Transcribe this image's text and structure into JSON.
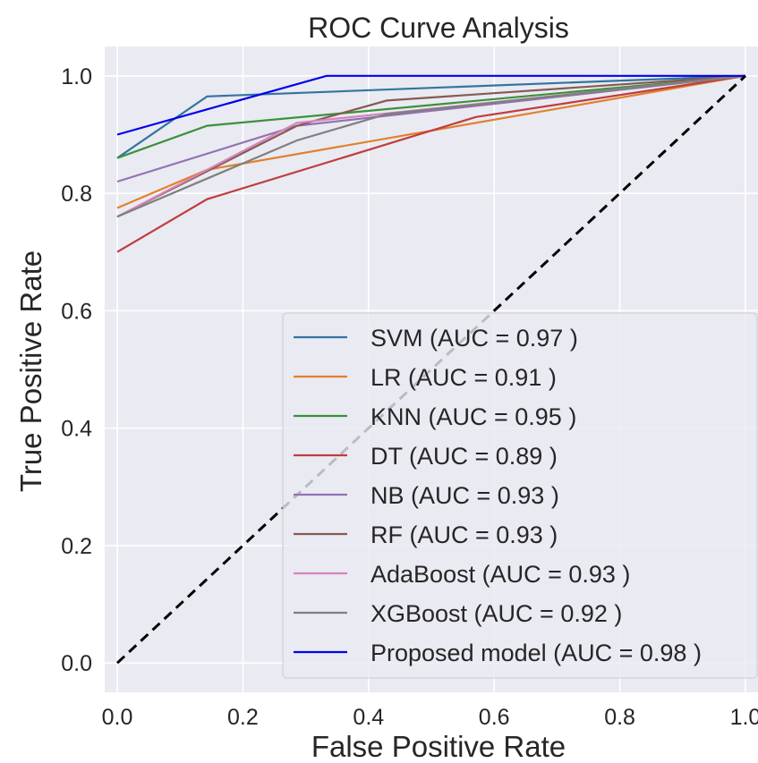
{
  "chart_data": {
    "type": "line",
    "title": "ROC Curve Analysis",
    "xlabel": "False Positive Rate",
    "ylabel": "True Positive Rate",
    "xlim": [
      -0.02,
      1.02
    ],
    "ylim": [
      -0.05,
      1.05
    ],
    "xticks": [
      0.0,
      0.2,
      0.4,
      0.6,
      0.8,
      1.0
    ],
    "xtick_labels": [
      "0.0",
      "0.2",
      "0.4",
      "0.6",
      "0.8",
      "1.0"
    ],
    "yticks": [
      0.0,
      0.2,
      0.4,
      0.6,
      0.8,
      1.0
    ],
    "ytick_labels": [
      "0.0",
      "0.2",
      "0.4",
      "0.6",
      "0.8",
      "1.0"
    ],
    "grid": true,
    "legend_position": "lower-right",
    "background": "#eaeaf2",
    "series": [
      {
        "name": "SVM (AUC = 0.97 )",
        "color": "#3274a1",
        "x": [
          0,
          0.143,
          1
        ],
        "y": [
          0.86,
          0.965,
          1
        ]
      },
      {
        "name": "LR (AUC = 0.91 )",
        "color": "#e1812c",
        "x": [
          0,
          0.143,
          1
        ],
        "y": [
          0.775,
          0.84,
          1
        ]
      },
      {
        "name": "KNN (AUC = 0.95 )",
        "color": "#3a923a",
        "x": [
          0,
          0.143,
          1
        ],
        "y": [
          0.86,
          0.915,
          1
        ]
      },
      {
        "name": "DT (AUC = 0.89 )",
        "color": "#c03d3e",
        "x": [
          0,
          0.143,
          0.571,
          1
        ],
        "y": [
          0.7,
          0.79,
          0.93,
          1
        ]
      },
      {
        "name": "NB (AUC = 0.93 )",
        "color": "#9372b2",
        "x": [
          0,
          0.286,
          1
        ],
        "y": [
          0.82,
          0.915,
          1
        ]
      },
      {
        "name": "RF (AUC = 0.93 )",
        "color": "#845b53",
        "x": [
          0,
          0.286,
          0.429,
          1
        ],
        "y": [
          0.76,
          0.915,
          0.958,
          1
        ]
      },
      {
        "name": "AdaBoost (AUC = 0.93 )",
        "color": "#d684bd",
        "x": [
          0,
          0.286,
          1
        ],
        "y": [
          0.76,
          0.92,
          1
        ]
      },
      {
        "name": "XGBoost (AUC = 0.92 )",
        "color": "#7f7f7f",
        "x": [
          0,
          0.286,
          0.429,
          1
        ],
        "y": [
          0.76,
          0.89,
          0.935,
          1
        ]
      },
      {
        "name": "Proposed model (AUC = 0.98 )",
        "color": "#0000ee",
        "x": [
          0,
          0.333,
          1
        ],
        "y": [
          0.9,
          1.0,
          1
        ]
      }
    ],
    "diagonal": {
      "color": "#000000",
      "style": "dashed",
      "x": [
        0,
        1
      ],
      "y": [
        0,
        1
      ]
    }
  }
}
